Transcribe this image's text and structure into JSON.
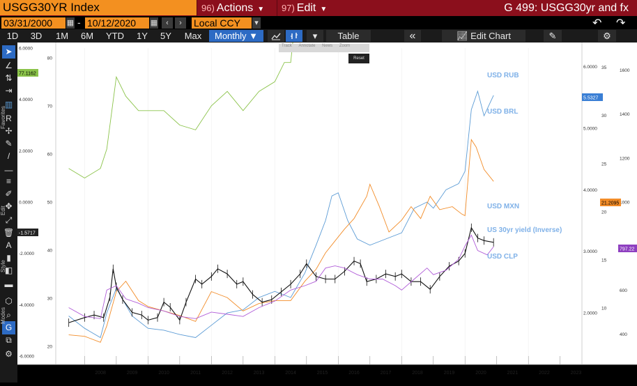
{
  "header": {
    "ticker": "USGG30YR Index",
    "actions_num": "96)",
    "actions_label": "Actions",
    "edit_num": "97)",
    "edit_label": "Edit",
    "right_title": "G 499: USGG30yr and fx"
  },
  "datebar": {
    "start_date": "03/31/2000",
    "separator": "-",
    "end_date": "10/12/2020",
    "currency": "Local CCY",
    "undo": "↶",
    "redo": "↷"
  },
  "toolbar": {
    "periods": [
      "1D",
      "3D",
      "1M",
      "6M",
      "YTD",
      "1Y",
      "5Y",
      "Max"
    ],
    "frequency": "Monthly ▼",
    "table_label": "Table",
    "collapse": "«",
    "edit_chart_label": "Edit Chart"
  },
  "mini_menu": {
    "items": [
      "Track",
      "Annotate",
      "News",
      "Zoom"
    ],
    "reset": "Reset"
  },
  "left_toolbar": {
    "favorites": "Favorites",
    "edit": "Edit",
    "style": "Style",
    "modes": "Modes"
  },
  "colors": {
    "rub": "#8bc34a",
    "brl": "#5b9bd5",
    "mxn": "#f28c28",
    "yield": "#ffffff",
    "clp": "#b05cd8",
    "label": "#7fb1e8",
    "title_bg": "#f39020",
    "header_bg": "#8b0f1c"
  },
  "chart_data": {
    "type": "line",
    "x_ticks": [
      "2008",
      "2009",
      "2010",
      "2011",
      "2012",
      "2013",
      "2014",
      "2015",
      "2016",
      "2017",
      "2018",
      "2019",
      "2020",
      "2021",
      "2022",
      "2023"
    ],
    "axes": {
      "yield_inverse": {
        "side": "left-outer",
        "ticks": [
          "6.0000",
          "4.0000",
          "2.0000",
          "0.0000",
          "-2.0000",
          "-4.0000",
          "-6.0000"
        ],
        "range": [
          6,
          -6
        ]
      },
      "mxn": {
        "side": "left-inner",
        "ticks": [
          "80",
          "70",
          "60",
          "50",
          "40",
          "30",
          "20"
        ],
        "range": [
          18,
          82
        ]
      },
      "brl": {
        "side": "right-inner",
        "ticks": [
          "6.0000",
          "5.0000",
          "4.0000",
          "3.0000",
          "2.0000"
        ],
        "range": [
          1.3,
          6.3
        ]
      },
      "rub": {
        "side": "right-mid",
        "ticks": [
          "35",
          "30",
          "25",
          "20",
          "15",
          "10"
        ],
        "range": [
          5,
          37
        ]
      },
      "clp": {
        "side": "right-outer",
        "ticks": [
          "1600",
          "1400",
          "1200",
          "1000",
          "800",
          "600",
          "400"
        ],
        "range": [
          300,
          1700
        ]
      }
    },
    "last_values": {
      "yield": "-1.5717",
      "rub": "77.1162",
      "brl": "5.5327",
      "mxn": "21.2095",
      "clp": "797.22"
    },
    "series": [
      {
        "name": "USD RUB",
        "axis": "rub",
        "x": [
          2007.5,
          2008.0,
          2008.5,
          2008.7,
          2009.0,
          2009.3,
          2009.7,
          2010.0,
          2010.5,
          2011.0,
          2011.5,
          2012.0,
          2012.5,
          2013.0,
          2013.5,
          2014.0,
          2014.3,
          2014.5,
          2014.8,
          2014.95,
          2015.1,
          2015.3,
          2015.5,
          2015.8,
          2016.0,
          2016.15,
          2016.4,
          2016.7,
          2017.0,
          2017.3,
          2017.7,
          2018.0,
          2018.3,
          2018.6,
          2018.9,
          2019.2,
          2019.6,
          2020.0,
          2020.2,
          2020.4,
          2020.7,
          2020.9
        ],
        "values": [
          24.5,
          23.5,
          24.5,
          26.5,
          34,
          32,
          30.5,
          30.5,
          30.5,
          29,
          28.5,
          31,
          32.5,
          30.5,
          32.5,
          33.5,
          35.5,
          35.5,
          45,
          56,
          66,
          53,
          58,
          68,
          73,
          74.5,
          66,
          64,
          60,
          56.5,
          58,
          57,
          62,
          67.5,
          67,
          66,
          64,
          62,
          75,
          69,
          78,
          77.1
        ]
      },
      {
        "name": "USD BRL",
        "axis": "brl",
        "x": [
          2007.5,
          2008.0,
          2008.5,
          2008.7,
          2009.0,
          2009.5,
          2010.0,
          2010.5,
          2011.0,
          2011.5,
          2012.0,
          2012.5,
          2013.0,
          2013.5,
          2014.0,
          2014.5,
          2014.95,
          2015.3,
          2015.6,
          2015.8,
          2016.0,
          2016.3,
          2016.6,
          2017.0,
          2017.5,
          2018.0,
          2018.4,
          2018.8,
          2019.0,
          2019.4,
          2019.8,
          2020.0,
          2020.2,
          2020.4,
          2020.6,
          2020.9
        ],
        "values": [
          1.95,
          1.75,
          1.6,
          2.0,
          2.4,
          1.95,
          1.75,
          1.72,
          1.65,
          1.6,
          1.8,
          2.0,
          2.05,
          2.25,
          2.35,
          2.25,
          2.65,
          3.1,
          3.5,
          3.9,
          3.95,
          3.5,
          3.2,
          3.1,
          3.2,
          3.3,
          3.7,
          3.8,
          3.7,
          4.0,
          4.1,
          4.3,
          5.3,
          5.6,
          5.2,
          5.5327
        ]
      },
      {
        "name": "USD MXN",
        "axis": "mxn",
        "x": [
          2007.5,
          2008.0,
          2008.5,
          2008.7,
          2009.0,
          2009.3,
          2009.7,
          2010.0,
          2010.5,
          2011.0,
          2011.5,
          2012.0,
          2012.5,
          2013.0,
          2013.5,
          2014.0,
          2014.5,
          2014.95,
          2015.3,
          2015.6,
          2015.9,
          2016.2,
          2016.5,
          2016.9,
          2017.0,
          2017.3,
          2017.6,
          2018.0,
          2018.3,
          2018.6,
          2018.9,
          2019.2,
          2019.6,
          2019.9,
          2020.0,
          2020.2,
          2020.35,
          2020.6,
          2020.9
        ],
        "values": [
          10.9,
          10.8,
          10.4,
          11.5,
          13.8,
          14.5,
          13.2,
          12.8,
          12.5,
          12.2,
          11.8,
          13.8,
          13.4,
          12.5,
          13.0,
          13.2,
          13.2,
          14.5,
          15.3,
          16.4,
          17.2,
          18.0,
          18.7,
          20.2,
          21.0,
          19.5,
          17.8,
          18.6,
          19.5,
          18.7,
          20.2,
          19.3,
          19.5,
          19.0,
          18.9,
          24.0,
          23.5,
          22.0,
          21.2
        ]
      },
      {
        "name": "US 30yr yield (Inverse)",
        "axis": "yield_inverse",
        "x": [
          2007.5,
          2008.0,
          2008.3,
          2008.6,
          2008.8,
          2008.9,
          2009.0,
          2009.2,
          2009.5,
          2009.8,
          2010.0,
          2010.3,
          2010.5,
          2010.7,
          2011.0,
          2011.2,
          2011.5,
          2011.7,
          2012.0,
          2012.2,
          2012.5,
          2012.8,
          2013.0,
          2013.3,
          2013.6,
          2013.9,
          2014.2,
          2014.5,
          2014.8,
          2015.0,
          2015.3,
          2015.6,
          2015.9,
          2016.2,
          2016.5,
          2016.7,
          2016.9,
          2017.2,
          2017.5,
          2017.8,
          2018.0,
          2018.3,
          2018.6,
          2018.9,
          2019.2,
          2019.5,
          2019.8,
          2020.0,
          2020.2,
          2020.4,
          2020.6,
          2020.9
        ],
        "values": [
          -4.7,
          -4.5,
          -4.4,
          -4.5,
          -3.7,
          -2.6,
          -3.3,
          -3.8,
          -4.3,
          -4.4,
          -4.6,
          -4.5,
          -3.9,
          -4.1,
          -4.6,
          -3.9,
          -3.0,
          -3.2,
          -2.9,
          -2.6,
          -2.8,
          -3.2,
          -3.1,
          -3.6,
          -3.9,
          -3.8,
          -3.5,
          -3.2,
          -2.8,
          -2.4,
          -2.9,
          -3.0,
          -3.0,
          -2.7,
          -2.3,
          -2.4,
          -3.1,
          -3.0,
          -2.8,
          -2.9,
          -2.8,
          -3.1,
          -3.1,
          -3.4,
          -2.9,
          -2.5,
          -2.3,
          -2.0,
          -1.0,
          -1.4,
          -1.5,
          -1.57
        ]
      },
      {
        "name": "USD CLP",
        "axis": "clp",
        "x": [
          2007.5,
          2008.0,
          2008.5,
          2008.7,
          2009.0,
          2009.3,
          2009.7,
          2010.0,
          2010.5,
          2011.0,
          2011.5,
          2012.0,
          2012.5,
          2013.0,
          2013.5,
          2014.0,
          2014.5,
          2014.95,
          2015.3,
          2015.6,
          2015.9,
          2016.2,
          2016.6,
          2017.0,
          2017.4,
          2017.8,
          2018.0,
          2018.4,
          2018.8,
          2019.0,
          2019.4,
          2019.8,
          2020.0,
          2020.2,
          2020.4,
          2020.7,
          2020.9
        ],
        "values": [
          520,
          480,
          470,
          600,
          620,
          560,
          540,
          520,
          505,
          480,
          470,
          500,
          490,
          480,
          520,
          550,
          600,
          620,
          640,
          700,
          710,
          700,
          670,
          650,
          650,
          620,
          600,
          650,
          700,
          670,
          690,
          740,
          800,
          850,
          780,
          760,
          797
        ]
      }
    ]
  }
}
